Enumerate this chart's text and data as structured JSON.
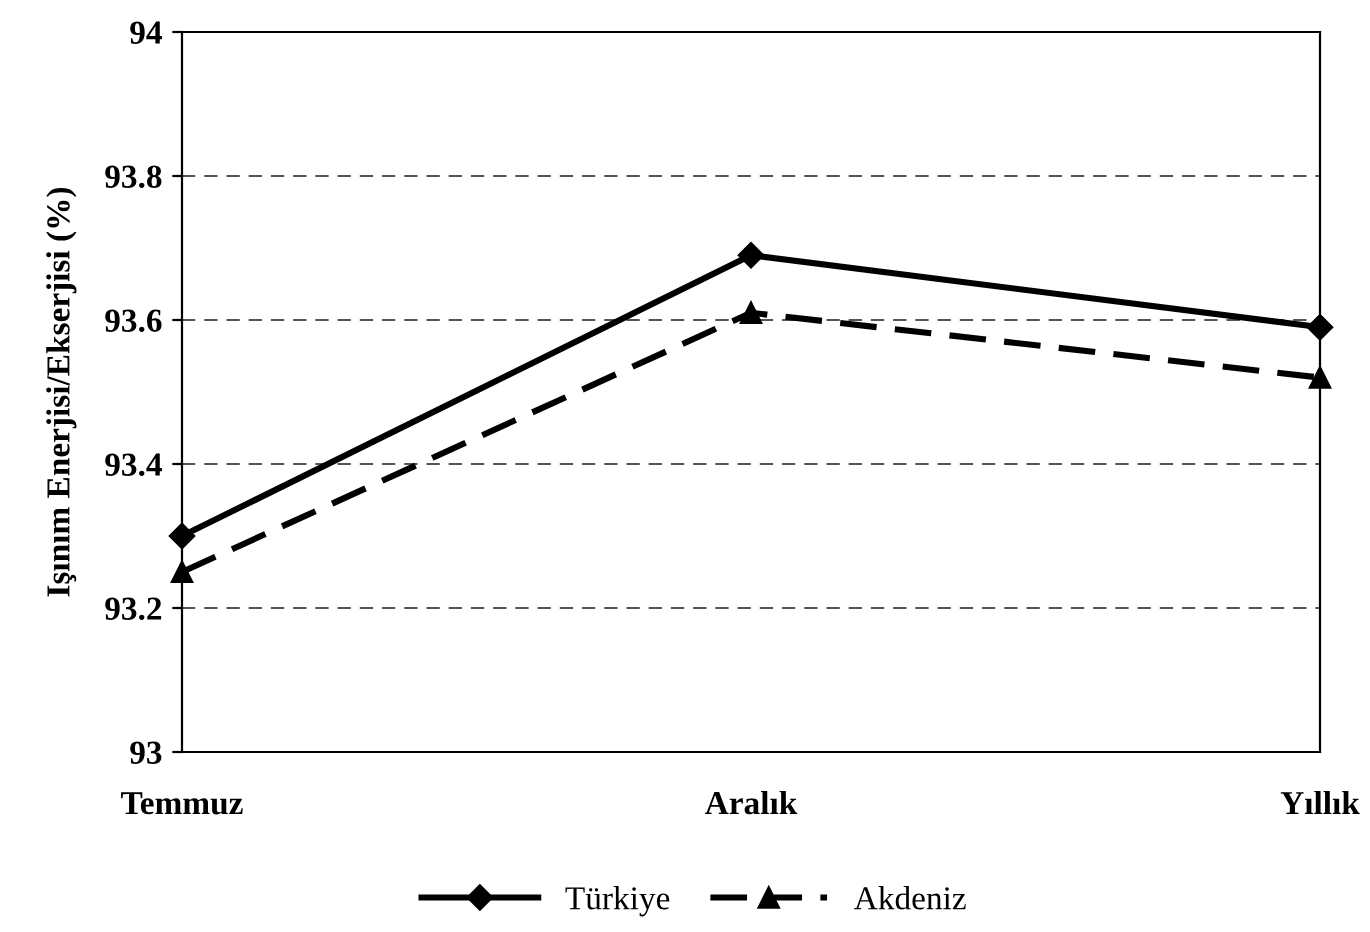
{
  "chart_data": {
    "type": "line",
    "ylabel": "Işınım Enerjisi/Ekserjisi (%)",
    "categories": [
      "Temmuz",
      "Aralık",
      "Yıllık"
    ],
    "series": [
      {
        "name": "Türkiye",
        "color": "#000000",
        "values": [
          93.3,
          93.69,
          93.59
        ],
        "marker": "diamond",
        "line_style": "solid"
      },
      {
        "name": "Akdeniz",
        "color": "#000000",
        "values": [
          93.25,
          93.61,
          93.52
        ],
        "marker": "triangle",
        "line_style": "dashed"
      }
    ],
    "ylim": [
      93,
      94
    ],
    "yticks": [
      93,
      93.2,
      93.4,
      93.6,
      93.8,
      94
    ],
    "grid": "y",
    "legend": "bottom"
  }
}
